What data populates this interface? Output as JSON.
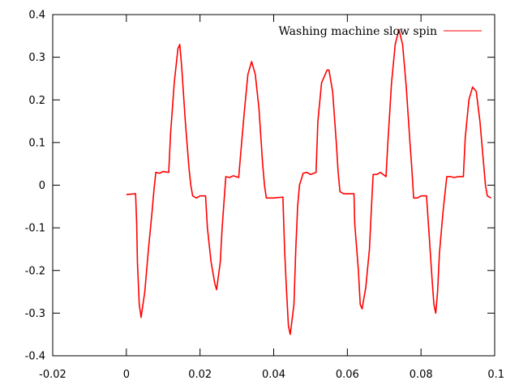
{
  "chart_data": {
    "type": "line",
    "title": "",
    "xlabel": "",
    "ylabel": "",
    "xlim": [
      -0.02,
      0.1
    ],
    "ylim": [
      -0.4,
      0.4
    ],
    "x_ticks": [
      -0.02,
      0,
      0.02,
      0.04,
      0.06,
      0.08,
      0.1
    ],
    "x_tick_labels": [
      "-0.02",
      "0",
      "0.02",
      "0.04",
      "0.06",
      "0.08",
      "0.1"
    ],
    "y_ticks": [
      -0.4,
      -0.3,
      -0.2,
      -0.1,
      0,
      0.1,
      0.2,
      0.3,
      0.4
    ],
    "y_tick_labels": [
      "-0.4",
      "-0.3",
      "-0.2",
      "-0.1",
      "0",
      "0.1",
      "0.2",
      "0.3",
      "0.4"
    ],
    "grid": false,
    "legend_position": "top-right",
    "series": [
      {
        "name": "Washing machine slow spin",
        "color": "#ff0000",
        "x": [
          0.0,
          0.0025,
          0.0028,
          0.003,
          0.0035,
          0.004,
          0.005,
          0.006,
          0.007,
          0.0075,
          0.008,
          0.009,
          0.01,
          0.0115,
          0.012,
          0.013,
          0.014,
          0.0145,
          0.015,
          0.016,
          0.017,
          0.0175,
          0.018,
          0.019,
          0.02,
          0.0215,
          0.022,
          0.023,
          0.024,
          0.0245,
          0.0255,
          0.026,
          0.027,
          0.028,
          0.029,
          0.0305,
          0.031,
          0.032,
          0.033,
          0.034,
          0.035,
          0.036,
          0.037,
          0.0375,
          0.038,
          0.039,
          0.04,
          0.0425,
          0.043,
          0.0435,
          0.044,
          0.0445,
          0.0455,
          0.046,
          0.0465,
          0.047,
          0.048,
          0.049,
          0.05,
          0.0515,
          0.052,
          0.053,
          0.0545,
          0.055,
          0.056,
          0.057,
          0.0575,
          0.058,
          0.059,
          0.06,
          0.0618,
          0.062,
          0.063,
          0.0635,
          0.064,
          0.065,
          0.066,
          0.0665,
          0.067,
          0.068,
          0.069,
          0.0705,
          0.071,
          0.072,
          0.073,
          0.074,
          0.075,
          0.076,
          0.077,
          0.0775,
          0.078,
          0.079,
          0.08,
          0.0815,
          0.082,
          0.083,
          0.0835,
          0.084,
          0.0845,
          0.085,
          0.086,
          0.087,
          0.0875,
          0.088,
          0.089,
          0.09,
          0.0915,
          0.092,
          0.093,
          0.094,
          0.095,
          0.096,
          0.097,
          0.0975,
          0.098,
          0.099
        ],
        "y": [
          -0.022,
          -0.02,
          -0.09,
          -0.18,
          -0.28,
          -0.31,
          -0.25,
          -0.15,
          -0.06,
          -0.01,
          0.03,
          0.028,
          0.032,
          0.03,
          0.12,
          0.24,
          0.32,
          0.33,
          0.28,
          0.15,
          0.04,
          0.0,
          -0.025,
          -0.03,
          -0.025,
          -0.025,
          -0.1,
          -0.18,
          -0.23,
          -0.245,
          -0.18,
          -0.1,
          0.02,
          0.018,
          0.022,
          0.018,
          0.07,
          0.17,
          0.26,
          0.29,
          0.26,
          0.18,
          0.05,
          0.0,
          -0.03,
          -0.03,
          -0.03,
          -0.028,
          -0.16,
          -0.25,
          -0.33,
          -0.35,
          -0.28,
          -0.15,
          -0.05,
          0.0,
          0.028,
          0.03,
          0.025,
          0.03,
          0.15,
          0.24,
          0.27,
          0.27,
          0.22,
          0.1,
          0.03,
          -0.015,
          -0.02,
          -0.02,
          -0.02,
          -0.09,
          -0.2,
          -0.28,
          -0.29,
          -0.24,
          -0.15,
          -0.06,
          0.025,
          0.025,
          0.03,
          0.02,
          0.1,
          0.24,
          0.33,
          0.365,
          0.33,
          0.23,
          0.1,
          0.04,
          -0.03,
          -0.03,
          -0.025,
          -0.025,
          -0.09,
          -0.22,
          -0.28,
          -0.3,
          -0.25,
          -0.16,
          -0.06,
          0.02,
          0.02,
          0.02,
          0.018,
          0.02,
          0.02,
          0.11,
          0.2,
          0.23,
          0.22,
          0.15,
          0.05,
          0.0,
          -0.025,
          -0.03
        ]
      }
    ]
  }
}
